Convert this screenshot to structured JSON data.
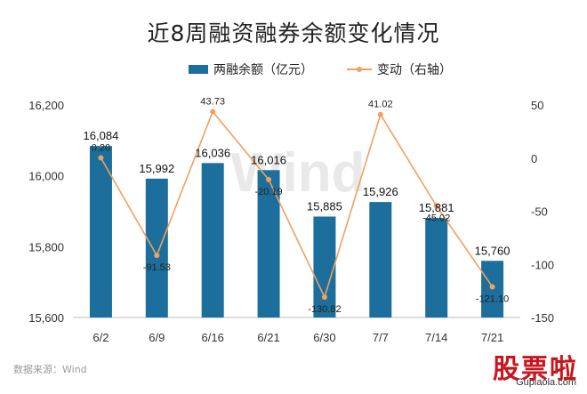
{
  "title": "近8周融资融券余额变化情况",
  "source_note": "数据来源：Wind",
  "watermark": "Wind",
  "logo": {
    "chars": "股票啦",
    "url": "Gupiaola.com"
  },
  "colors": {
    "bar": "#1c6f9c",
    "line": "#f0a060",
    "axis_text": "#333333",
    "grid": "#dddddd"
  },
  "chart_data": {
    "type": "bar",
    "title": "近8周融资融券余额变化情况",
    "categories": [
      "6/2",
      "6/9",
      "6/16",
      "6/21",
      "6/30",
      "7/7",
      "7/14",
      "7/21"
    ],
    "series": [
      {
        "name": "两融余额（亿元）",
        "type": "bar",
        "axis": "left",
        "values": [
          16084,
          15992,
          16036,
          16016,
          15885,
          15926,
          15881,
          15760
        ],
        "labels": [
          "16,084",
          "15,992",
          "16,036",
          "16,016",
          "15,885",
          "15,926",
          "15,881",
          "15,760"
        ]
      },
      {
        "name": "变动（右轴）",
        "type": "line",
        "axis": "right",
        "values": [
          0.2,
          -91.53,
          43.73,
          -20.19,
          -130.82,
          41.02,
          -45.02,
          -121.1
        ],
        "labels": [
          "0.20",
          "-91.53",
          "43.73",
          "-20.19",
          "-130.82",
          "41.02",
          "-45.02",
          "-121.10"
        ]
      }
    ],
    "y_left": {
      "min": 15600,
      "max": 16200,
      "ticks": [
        15600,
        15800,
        16000,
        16200
      ],
      "tick_labels": [
        "15,600",
        "15,800",
        "16,000",
        "16,200"
      ]
    },
    "y_right": {
      "min": -150,
      "max": 50,
      "ticks": [
        50,
        0,
        -50,
        -100,
        -150
      ],
      "tick_labels": [
        "50",
        "0",
        "-50",
        "-100",
        "-150"
      ]
    },
    "grid": false,
    "legend": "top-center"
  }
}
